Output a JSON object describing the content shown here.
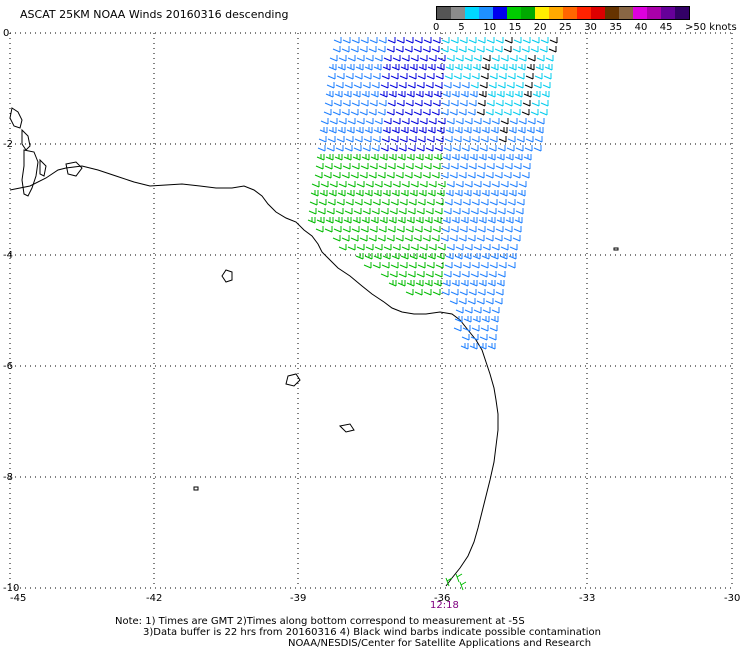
{
  "title": "ASCAT 25KM NOAA Winds 20160316 descending",
  "legend": {
    "colors": [
      "#555555",
      "#8c8c8c",
      "#00d8ff",
      "#1e90ff",
      "#0000ee",
      "#00cc00",
      "#00aa00",
      "#ffee00",
      "#ffaa00",
      "#ff6600",
      "#ff2200",
      "#dd0000",
      "#663300",
      "#886644",
      "#dd00dd",
      "#aa00aa",
      "#660099",
      "#330066"
    ],
    "labels": [
      "0",
      "5",
      "10",
      "15",
      "20",
      "25",
      "30",
      "35",
      "40",
      "45",
      ">50 knots"
    ]
  },
  "axes": {
    "lon_labels": [
      "-45",
      "-42",
      "-39",
      "-36",
      "-33",
      "-30"
    ],
    "lat_labels": [
      "0",
      "-2",
      "-4",
      "-6",
      "-8",
      "-10"
    ]
  },
  "timestamp": "12:18",
  "notes": [
    "Note: 1) Times are GMT 2)Times along bottom correspond to measurement at -5S",
    "3)Data buffer is 22 hrs from 20160316 4) Black wind barbs indicate possible contamination",
    "NOAA/NESDIS/Center for Satellite Applications and Research"
  ],
  "barb_colors": {
    "black": "#000000",
    "cyan": "#00ccee",
    "light_blue": "#1e7fff",
    "blue": "#0000dd",
    "green": "#00bb00",
    "yellow": "#ddcc00"
  }
}
